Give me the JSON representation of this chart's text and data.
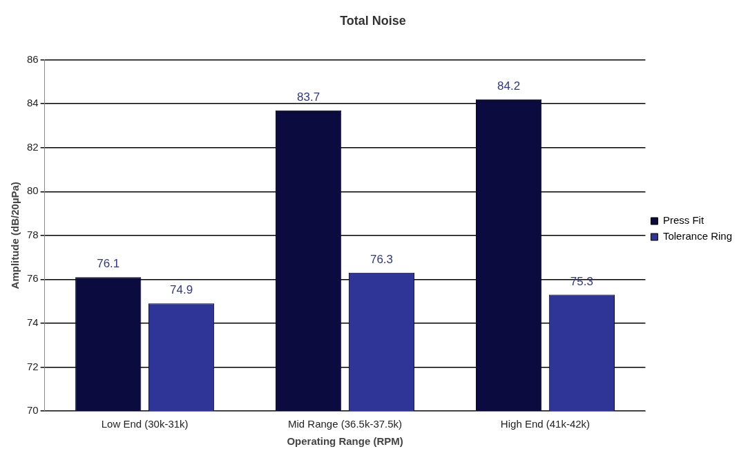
{
  "chart_data": {
    "type": "bar",
    "title": "Total Noise",
    "xlabel": "Operating Range (RPM)",
    "ylabel": "Amplitude (dB/20µPa)",
    "categories": [
      "Low End (30k-31k)",
      "Mid Range (36.5k-37.5k)",
      "High End (41k-42k)"
    ],
    "series": [
      {
        "name": "Press Fit",
        "color": "#0b0b3f",
        "values": [
          76.1,
          83.7,
          84.2
        ]
      },
      {
        "name": "Tolerance Ring",
        "color": "#2e3596",
        "values": [
          74.9,
          76.3,
          75.3
        ]
      }
    ],
    "ylim": [
      70,
      86
    ],
    "yticks": [
      70,
      72,
      74,
      76,
      78,
      80,
      82,
      84,
      86
    ],
    "grid": "y",
    "legend": "right",
    "data_labels": true
  }
}
